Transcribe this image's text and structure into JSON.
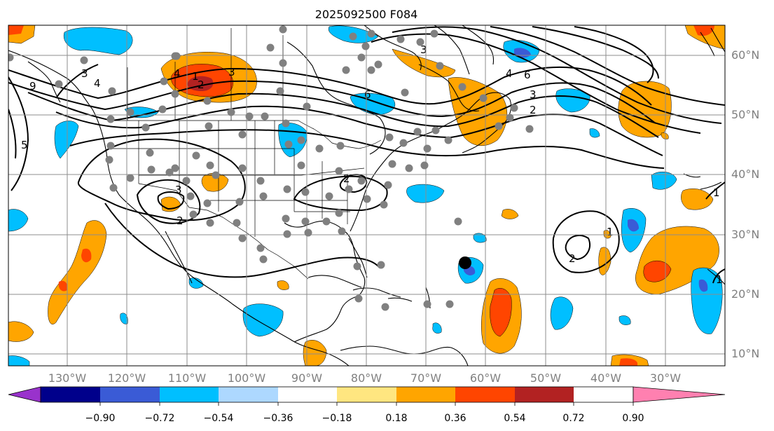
{
  "title": "2025092500 F084",
  "map": {
    "lon_labels": [
      "130°W",
      "120°W",
      "110°W",
      "100°W",
      "90°W",
      "80°W",
      "70°W",
      "60°W",
      "50°W",
      "40°W",
      "30°W"
    ],
    "lat_labels": [
      "60°N",
      "50°N",
      "40°N",
      "30°N",
      "20°N",
      "10°N"
    ],
    "contour_labels": [
      "9",
      "5",
      "3",
      "4",
      "3",
      "2",
      "1",
      "2",
      "3",
      "4",
      "6",
      "3",
      "4",
      "6",
      "3",
      "2",
      "2",
      "1",
      "2",
      "1",
      "1"
    ],
    "grid": true,
    "colors": {
      "land_outline": "#000000",
      "station_marker": "#808080",
      "highlight_marker": "#000000",
      "grid": "#8c8c8c"
    }
  },
  "colorbar": {
    "tick_labels": [
      "−0.90",
      "−0.72",
      "−0.54",
      "−0.36",
      "−0.18",
      "0.18",
      "0.36",
      "0.54",
      "0.72",
      "0.90"
    ],
    "bins": [
      "#9932cc",
      "#00008b",
      "#3a5bd6",
      "#00bfff",
      "#add8ff",
      "#ffffff",
      "#ffe680",
      "#ffa500",
      "#ff4500",
      "#b22222",
      "#ff80b0"
    ],
    "extend": "both"
  }
}
